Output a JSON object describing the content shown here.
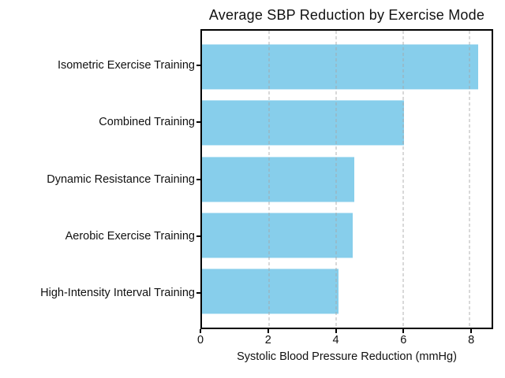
{
  "chart_data": {
    "type": "bar",
    "orientation": "horizontal",
    "title": "Average SBP Reduction by Exercise Mode",
    "xlabel": "Systolic Blood Pressure Reduction (mmHg)",
    "ylabel": "",
    "categories": [
      "Isometric Exercise Training",
      "Combined Training",
      "Dynamic Resistance Training",
      "Aerobic Exercise Training",
      "High-Intensity Interval Training"
    ],
    "values": [
      8.24,
      6.04,
      4.55,
      4.49,
      4.08
    ],
    "xticks": [
      0,
      2,
      4,
      6,
      8
    ],
    "xlim": [
      0,
      8.65
    ],
    "bar_color": "#87CEEB",
    "grid": "vertical-dashed",
    "grid_color": "#a5a5a5",
    "frame_color": "#000000",
    "background_color": "#ffffff",
    "legend": "none"
  }
}
